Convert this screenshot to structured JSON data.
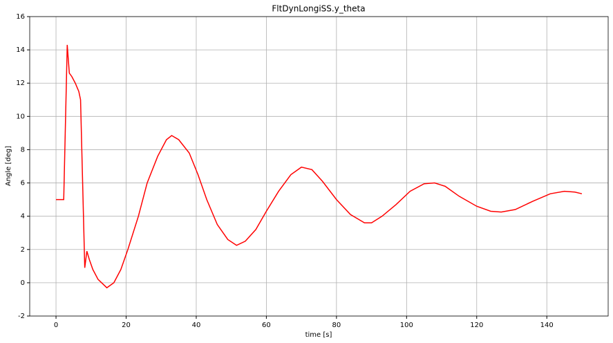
{
  "chart_data": {
    "type": "line",
    "title": "FltDynLongiSS.y_theta",
    "xlabel": "time [s]",
    "ylabel": "Angle [deg]",
    "x": [
      0,
      1,
      2.2,
      3.2,
      3.8,
      4.5,
      5.5,
      6.5,
      7.0,
      8.2,
      8.8,
      9.5,
      10.5,
      12,
      14.5,
      16.5,
      18.5,
      20.5,
      23.5,
      26,
      29,
      31.5,
      33,
      35,
      38,
      40.5,
      43,
      46,
      49,
      51.5,
      54,
      57,
      60,
      63.5,
      67,
      70,
      73,
      76,
      80,
      84,
      88,
      90,
      93,
      97,
      101,
      105,
      108,
      111,
      115,
      120,
      124,
      127,
      131,
      136,
      141,
      145,
      148,
      150
    ],
    "series": [
      {
        "name": "y_theta",
        "color": "#ff0000",
        "values": [
          5,
          5,
          5,
          14.3,
          12.6,
          12.4,
          12.0,
          11.5,
          11.0,
          0.9,
          1.9,
          1.4,
          0.8,
          0.2,
          -0.3,
          0,
          0.8,
          2,
          4,
          6,
          7.6,
          8.6,
          8.85,
          8.6,
          7.8,
          6.5,
          5,
          3.5,
          2.6,
          2.25,
          2.5,
          3.2,
          4.3,
          5.5,
          6.5,
          6.95,
          6.8,
          6.1,
          5,
          4.1,
          3.6,
          3.6,
          4,
          4.7,
          5.5,
          5.95,
          6.0,
          5.8,
          5.2,
          4.6,
          4.3,
          4.25,
          4.4,
          4.9,
          5.35,
          5.5,
          5.45,
          5.35
        ]
      }
    ],
    "xlim": [
      -7.5,
      157.5
    ],
    "ylim": [
      -2,
      16
    ],
    "xticks": [
      0,
      20,
      40,
      60,
      80,
      100,
      120,
      140
    ],
    "yticks": [
      -2,
      0,
      2,
      4,
      6,
      8,
      10,
      12,
      14,
      16
    ],
    "grid": true
  }
}
